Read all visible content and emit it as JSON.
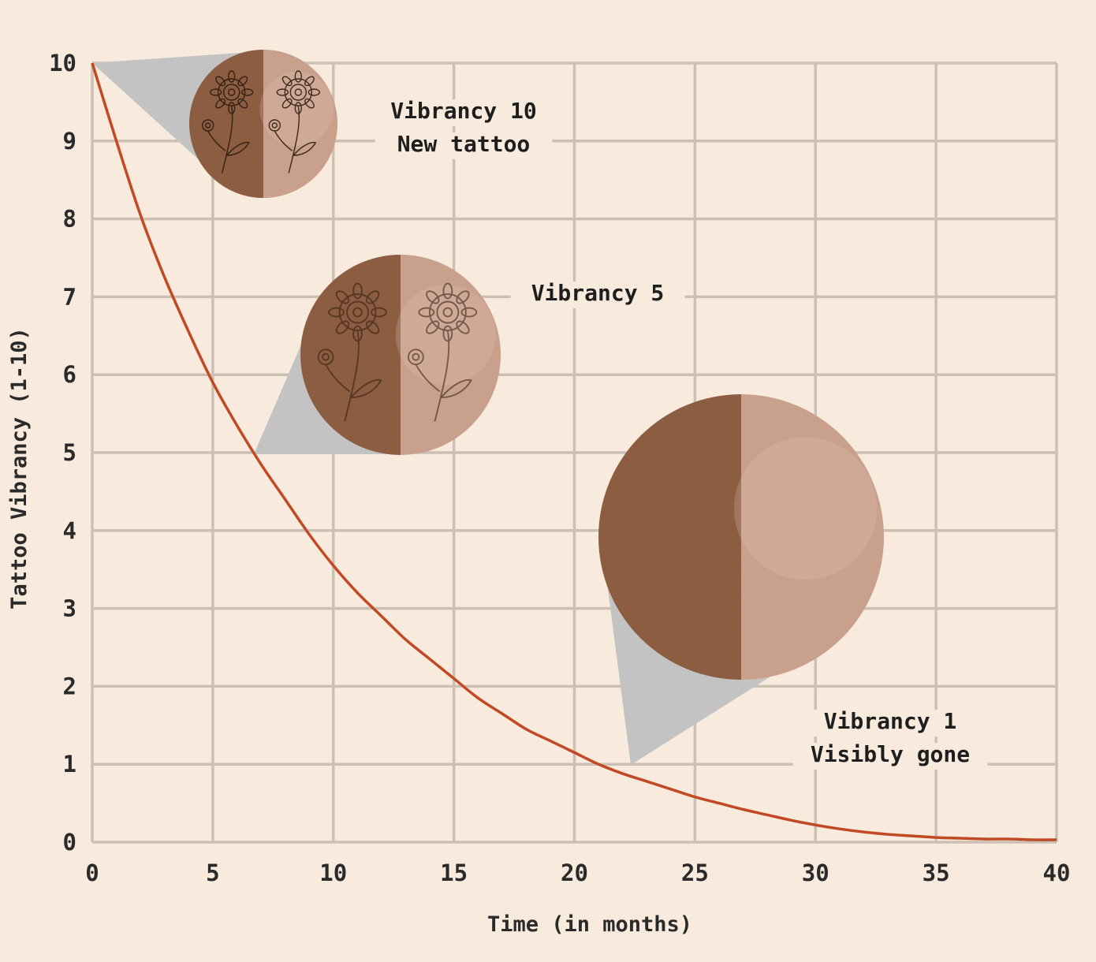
{
  "chart_data": {
    "type": "line",
    "x": [
      0,
      1,
      2,
      3,
      4,
      5,
      6,
      7,
      8,
      9,
      10,
      11,
      12,
      13,
      14,
      15,
      16,
      17,
      18,
      19,
      20,
      21,
      22,
      23,
      24,
      25,
      26,
      27,
      28,
      29,
      30,
      31,
      32,
      33,
      34,
      35,
      36,
      37,
      38,
      39,
      40
    ],
    "y": [
      10,
      9.0,
      8.05,
      7.25,
      6.55,
      5.9,
      5.35,
      4.85,
      4.4,
      3.95,
      3.55,
      3.2,
      2.9,
      2.6,
      2.35,
      2.1,
      1.85,
      1.65,
      1.45,
      1.3,
      1.15,
      1.0,
      0.88,
      0.78,
      0.68,
      0.58,
      0.5,
      0.42,
      0.35,
      0.28,
      0.22,
      0.17,
      0.13,
      0.1,
      0.08,
      0.06,
      0.05,
      0.04,
      0.04,
      0.03,
      0.03
    ],
    "xlabel": "Time (in months)",
    "ylabel": "Tattoo Vibrancy (1-10)",
    "xlim": [
      0,
      40
    ],
    "ylim": [
      0,
      10
    ],
    "x_ticks": [
      "0",
      "5",
      "10",
      "15",
      "20",
      "25",
      "30",
      "35",
      "40"
    ],
    "y_ticks": [
      "0",
      "1",
      "2",
      "3",
      "4",
      "5",
      "6",
      "7",
      "8",
      "9",
      "10"
    ],
    "grid": true,
    "line_color": "#c14a24",
    "annotations": [
      {
        "lines": [
          "Vibrancy 10",
          "New tattoo"
        ],
        "x": 0,
        "y": 10,
        "image": "half-dark-half-light-skin-circle-with-flower-tattoo"
      },
      {
        "lines": [
          "Vibrancy 5"
        ],
        "x": 6.8,
        "y": 5,
        "image": "half-dark-half-light-skin-circle-with-faded-flower-tattoo"
      },
      {
        "lines": [
          "Vibrancy 1",
          "Visibly gone"
        ],
        "x": 22.5,
        "y": 1,
        "image": "half-dark-half-light-skin-circle-no-tattoo"
      }
    ]
  },
  "colors": {
    "background": "#f8eadd",
    "grid": "#ccc0b4",
    "line": "#c14a24",
    "callout": "#c3c3c3",
    "skin_dark": "#8a5a3e",
    "skin_light": "#c9a08c"
  }
}
